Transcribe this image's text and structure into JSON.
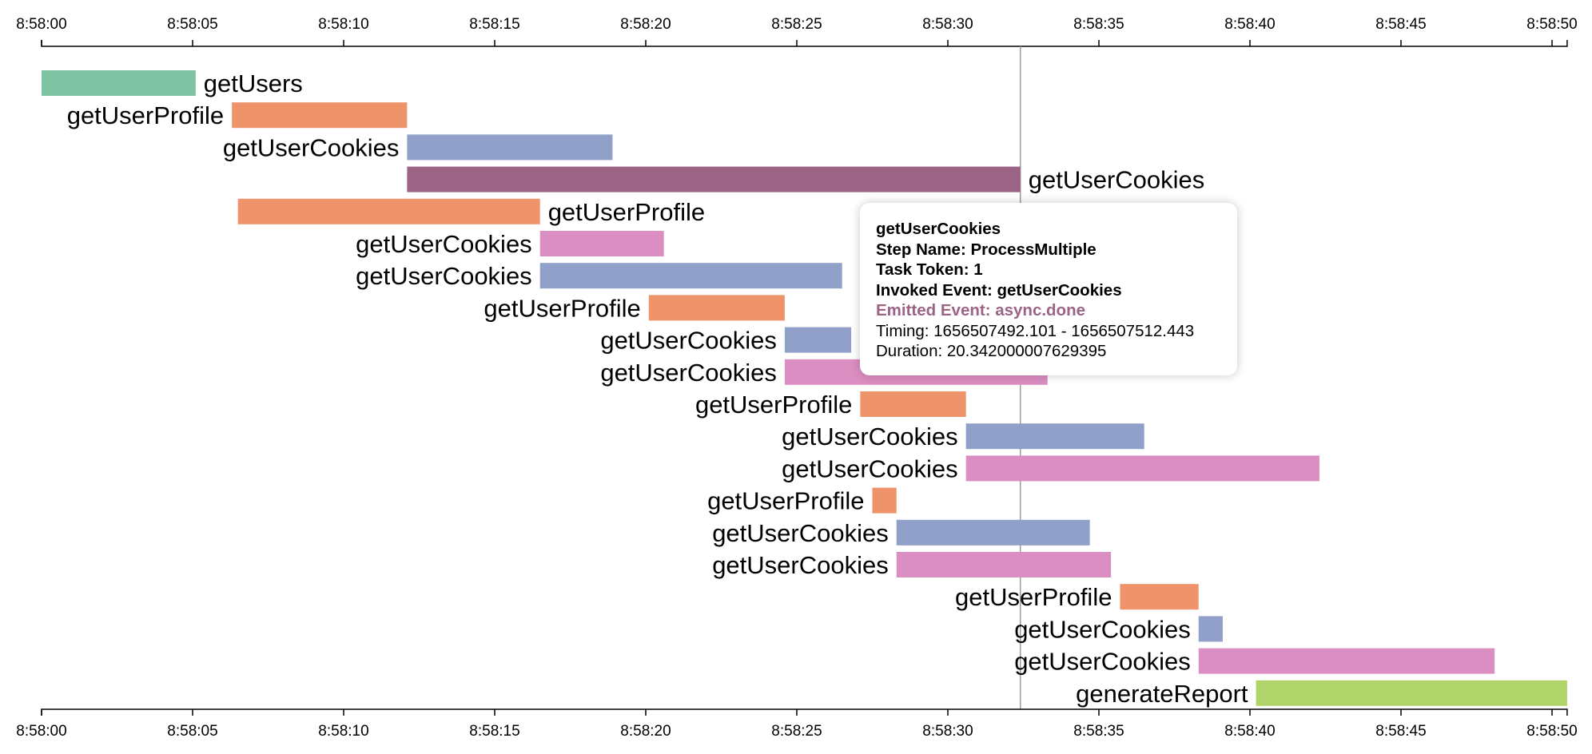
{
  "chart_data": {
    "type": "gantt",
    "x_axis": {
      "ticks": [
        "8:58:00",
        "8:58:05",
        "8:58:10",
        "8:58:15",
        "8:58:20",
        "8:58:25",
        "8:58:30",
        "8:58:35",
        "8:58:40",
        "8:58:45",
        "8:58:50"
      ],
      "range_seconds": [
        0,
        50.5
      ],
      "positions": [
        "top",
        "bottom"
      ]
    },
    "marker_seconds": 32.4,
    "tasks": [
      {
        "label": "getUsers",
        "start": 0.0,
        "end": 5.1,
        "color": "#7fc3a5",
        "label_side": "right"
      },
      {
        "label": "getUserProfile",
        "start": 6.3,
        "end": 12.1,
        "color": "#ef936b",
        "label_side": "left"
      },
      {
        "label": "getUserCookies",
        "start": 12.1,
        "end": 18.9,
        "color": "#90a0c8",
        "label_side": "left"
      },
      {
        "label": "getUserCookies",
        "start": 12.1,
        "end": 32.4,
        "color": "#9b6485",
        "label_side": "right"
      },
      {
        "label": "getUserProfile",
        "start": 6.5,
        "end": 16.5,
        "color": "#ef936b",
        "label_side": "right"
      },
      {
        "label": "getUserCookies",
        "start": 16.5,
        "end": 20.6,
        "color": "#db8ec1",
        "label_side": "left"
      },
      {
        "label": "getUserCookies",
        "start": 16.5,
        "end": 26.5,
        "color": "#90a0c8",
        "label_side": "left"
      },
      {
        "label": "getUserProfile",
        "start": 20.1,
        "end": 24.6,
        "color": "#ef936b",
        "label_side": "left"
      },
      {
        "label": "getUserCookies",
        "start": 24.6,
        "end": 26.8,
        "color": "#90a0c8",
        "label_side": "left"
      },
      {
        "label": "getUserCookies",
        "start": 24.6,
        "end": 33.3,
        "color": "#db8ec1",
        "label_side": "left"
      },
      {
        "label": "getUserProfile",
        "start": 27.1,
        "end": 30.6,
        "color": "#ef936b",
        "label_side": "left"
      },
      {
        "label": "getUserCookies",
        "start": 30.6,
        "end": 36.5,
        "color": "#90a0c8",
        "label_side": "left"
      },
      {
        "label": "getUserCookies",
        "start": 30.6,
        "end": 42.3,
        "color": "#db8ec1",
        "label_side": "left"
      },
      {
        "label": "getUserProfile",
        "start": 27.5,
        "end": 28.3,
        "color": "#ef936b",
        "label_side": "left"
      },
      {
        "label": "getUserCookies",
        "start": 28.3,
        "end": 34.7,
        "color": "#90a0c8",
        "label_side": "left"
      },
      {
        "label": "getUserCookies",
        "start": 28.3,
        "end": 35.4,
        "color": "#db8ec1",
        "label_side": "left"
      },
      {
        "label": "getUserProfile",
        "start": 35.7,
        "end": 38.3,
        "color": "#ef936b",
        "label_side": "left"
      },
      {
        "label": "getUserCookies",
        "start": 38.3,
        "end": 39.1,
        "color": "#90a0c8",
        "label_side": "left"
      },
      {
        "label": "getUserCookies",
        "start": 38.3,
        "end": 48.1,
        "color": "#db8ec1",
        "label_side": "left"
      },
      {
        "label": "generateReport",
        "start": 40.2,
        "end": 50.5,
        "color": "#b0d46a",
        "label_side": "left"
      }
    ]
  },
  "tooltip": {
    "title": "getUserCookies",
    "step_name": "Step Name: ProcessMultiple",
    "task_token": "Task Token: 1",
    "invoked_event": "Invoked Event: getUserCookies",
    "emitted_event": "Emitted Event: async.done",
    "timing": "Timing: 1656507492.101 - 1656507512.443",
    "duration": "Duration: 20.342000007629395",
    "emitted_color": "#9b6485"
  }
}
